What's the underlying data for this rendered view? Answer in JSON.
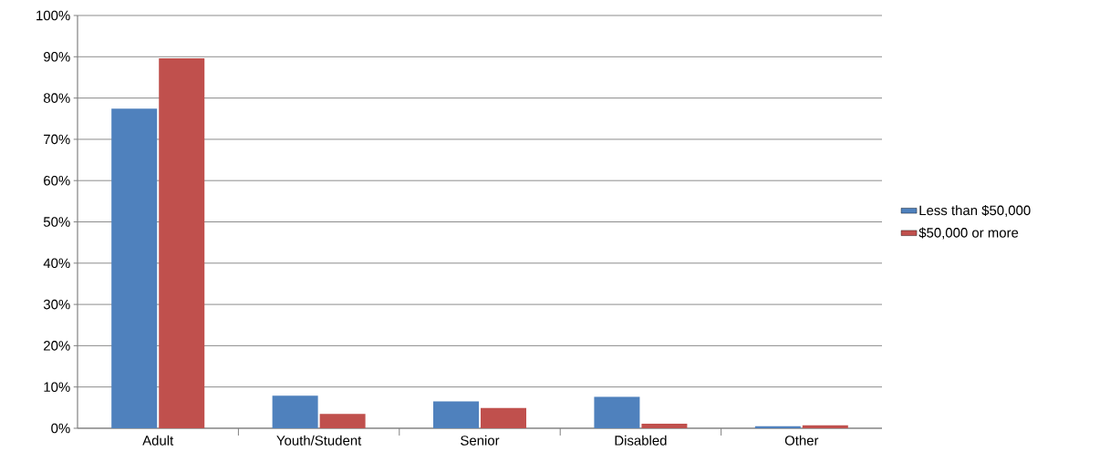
{
  "chart_data": {
    "type": "bar",
    "categories": [
      "Adult",
      "Youth/Student",
      "Senior",
      "Disabled",
      "Other"
    ],
    "series": [
      {
        "name": "Less than $50,000",
        "color": "#4f81bd",
        "values": [
          77.4,
          7.9,
          6.5,
          7.6,
          0.5
        ]
      },
      {
        "name": "$50,000 or more",
        "color": "#c0504d",
        "values": [
          89.6,
          3.5,
          4.9,
          1.1,
          0.7
        ]
      }
    ],
    "ylim": [
      0,
      100
    ],
    "yticks": [
      {
        "value": 0,
        "label": "0%"
      },
      {
        "value": 10,
        "label": "10%"
      },
      {
        "value": 20,
        "label": "20%"
      },
      {
        "value": 30,
        "label": "30%"
      },
      {
        "value": 40,
        "label": "40%"
      },
      {
        "value": 50,
        "label": "50%"
      },
      {
        "value": 60,
        "label": "60%"
      },
      {
        "value": 70,
        "label": "70%"
      },
      {
        "value": 80,
        "label": "80%"
      },
      {
        "value": 90,
        "label": "90%"
      },
      {
        "value": 100,
        "label": "100%"
      }
    ],
    "grid": "y",
    "legend": "right"
  }
}
